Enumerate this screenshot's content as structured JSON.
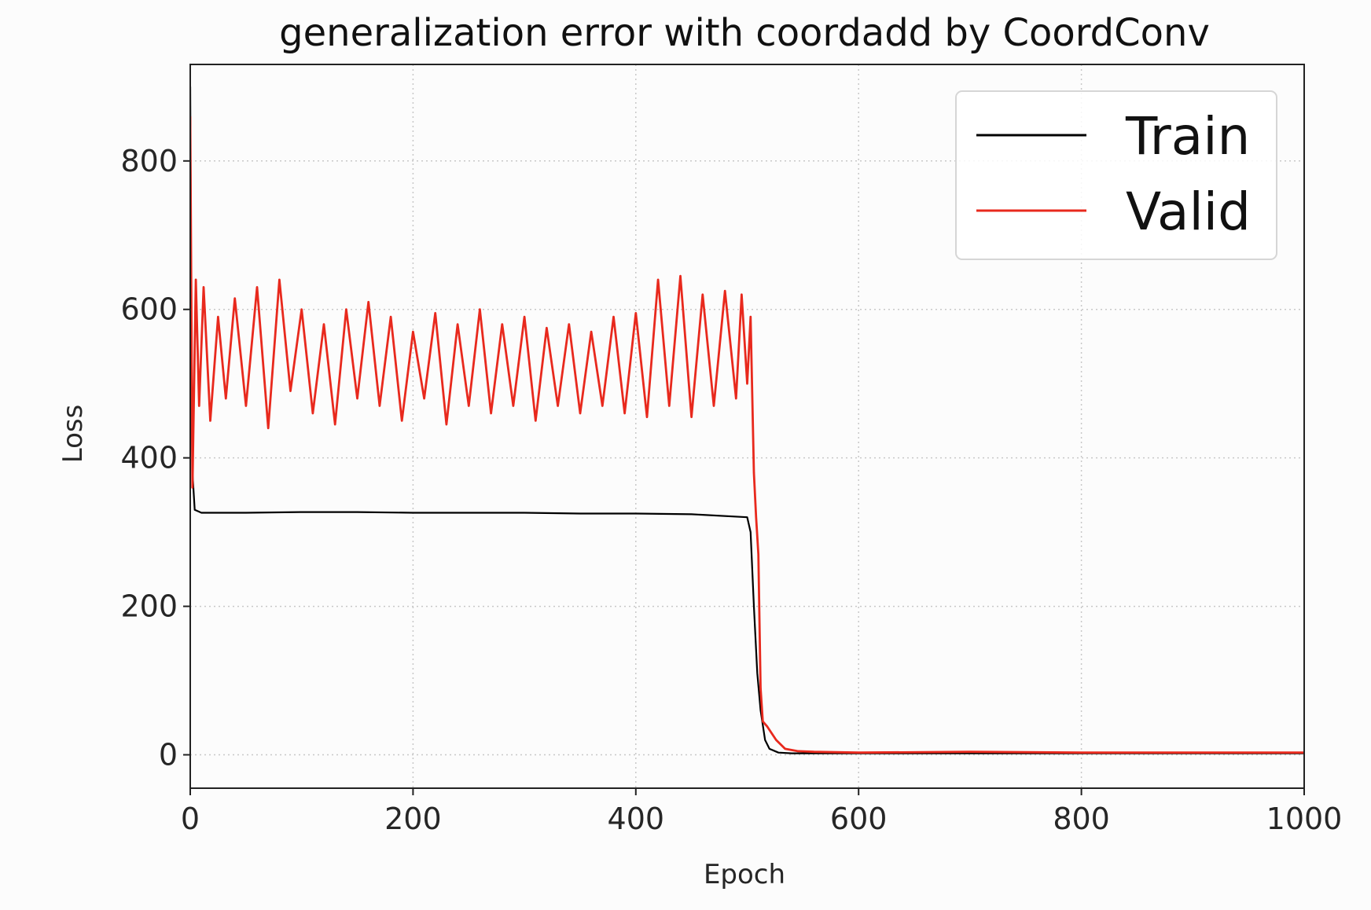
{
  "chart_data": {
    "type": "line",
    "title": "generalization error with coordadd by CoordConv",
    "xlabel": "Epoch",
    "ylabel": "Loss",
    "xlim": [
      0,
      1000
    ],
    "ylim": [
      -45,
      930
    ],
    "xticks": [
      0,
      200,
      400,
      600,
      800,
      1000
    ],
    "yticks": [
      0,
      200,
      400,
      600,
      800
    ],
    "grid": true,
    "legend": "top-right",
    "series": [
      {
        "name": "Train",
        "color": "#000000",
        "points": [
          [
            0,
            900
          ],
          [
            1,
            560
          ],
          [
            2,
            380
          ],
          [
            4,
            330
          ],
          [
            10,
            326
          ],
          [
            50,
            326
          ],
          [
            100,
            327
          ],
          [
            150,
            327
          ],
          [
            200,
            326
          ],
          [
            250,
            326
          ],
          [
            300,
            326
          ],
          [
            350,
            325
          ],
          [
            400,
            325
          ],
          [
            450,
            324
          ],
          [
            500,
            320
          ],
          [
            503,
            300
          ],
          [
            506,
            200
          ],
          [
            509,
            110
          ],
          [
            512,
            60
          ],
          [
            516,
            20
          ],
          [
            520,
            8
          ],
          [
            528,
            3
          ],
          [
            540,
            2
          ],
          [
            600,
            2
          ],
          [
            700,
            2
          ],
          [
            800,
            2
          ],
          [
            900,
            2
          ],
          [
            1000,
            2
          ]
        ]
      },
      {
        "name": "Valid",
        "color": "#e8291d",
        "points": [
          [
            0,
            860
          ],
          [
            2,
            360
          ],
          [
            5,
            640
          ],
          [
            8,
            470
          ],
          [
            12,
            630
          ],
          [
            18,
            450
          ],
          [
            25,
            590
          ],
          [
            32,
            480
          ],
          [
            40,
            615
          ],
          [
            50,
            470
          ],
          [
            60,
            630
          ],
          [
            70,
            440
          ],
          [
            80,
            640
          ],
          [
            90,
            490
          ],
          [
            100,
            600
          ],
          [
            110,
            460
          ],
          [
            120,
            580
          ],
          [
            130,
            445
          ],
          [
            140,
            600
          ],
          [
            150,
            480
          ],
          [
            160,
            610
          ],
          [
            170,
            470
          ],
          [
            180,
            590
          ],
          [
            190,
            450
          ],
          [
            200,
            570
          ],
          [
            210,
            480
          ],
          [
            220,
            595
          ],
          [
            230,
            445
          ],
          [
            240,
            580
          ],
          [
            250,
            470
          ],
          [
            260,
            600
          ],
          [
            270,
            460
          ],
          [
            280,
            580
          ],
          [
            290,
            470
          ],
          [
            300,
            590
          ],
          [
            310,
            450
          ],
          [
            320,
            575
          ],
          [
            330,
            470
          ],
          [
            340,
            580
          ],
          [
            350,
            460
          ],
          [
            360,
            570
          ],
          [
            370,
            470
          ],
          [
            380,
            590
          ],
          [
            390,
            460
          ],
          [
            400,
            595
          ],
          [
            410,
            455
          ],
          [
            420,
            640
          ],
          [
            430,
            470
          ],
          [
            440,
            645
          ],
          [
            450,
            455
          ],
          [
            460,
            620
          ],
          [
            470,
            470
          ],
          [
            480,
            625
          ],
          [
            490,
            480
          ],
          [
            495,
            620
          ],
          [
            500,
            500
          ],
          [
            503,
            590
          ],
          [
            506,
            380
          ],
          [
            508,
            320
          ],
          [
            510,
            270
          ],
          [
            512,
            90
          ],
          [
            514,
            45
          ],
          [
            518,
            38
          ],
          [
            526,
            20
          ],
          [
            534,
            8
          ],
          [
            545,
            5
          ],
          [
            560,
            4
          ],
          [
            600,
            3
          ],
          [
            700,
            4
          ],
          [
            800,
            3
          ],
          [
            900,
            3
          ],
          [
            1000,
            3
          ]
        ]
      }
    ]
  }
}
